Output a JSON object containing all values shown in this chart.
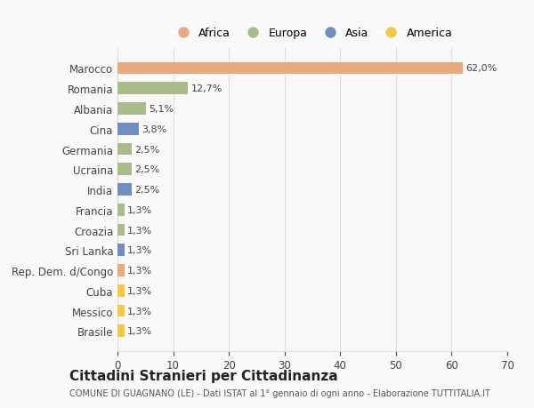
{
  "countries": [
    "Marocco",
    "Romania",
    "Albania",
    "Cina",
    "Germania",
    "Ucraina",
    "India",
    "Francia",
    "Croazia",
    "Sri Lanka",
    "Rep. Dem. d/Congo",
    "Cuba",
    "Messico",
    "Brasile"
  ],
  "values": [
    62.0,
    12.7,
    5.1,
    3.8,
    2.5,
    2.5,
    2.5,
    1.3,
    1.3,
    1.3,
    1.3,
    1.3,
    1.3,
    1.3
  ],
  "labels": [
    "62,0%",
    "12,7%",
    "5,1%",
    "3,8%",
    "2,5%",
    "2,5%",
    "2,5%",
    "1,3%",
    "1,3%",
    "1,3%",
    "1,3%",
    "1,3%",
    "1,3%",
    "1,3%"
  ],
  "colors": [
    "#E8A97E",
    "#A8BC8A",
    "#A8BC8A",
    "#6E8FBF",
    "#A8BC8A",
    "#A8BC8A",
    "#6E8FBF",
    "#A8BC8A",
    "#A8BC8A",
    "#6E8FBF",
    "#E8A97E",
    "#F5C842",
    "#F5C842",
    "#F5C842"
  ],
  "legend_labels": [
    "Africa",
    "Europa",
    "Asia",
    "America"
  ],
  "legend_colors": [
    "#E8A97E",
    "#A8BC8A",
    "#6E8FBF",
    "#F5C842"
  ],
  "xlim": [
    0,
    70
  ],
  "xticks": [
    0,
    10,
    20,
    30,
    40,
    50,
    60,
    70
  ],
  "title": "Cittadini Stranieri per Cittadinanza",
  "subtitle": "COMUNE DI GUAGNANO (LE) - Dati ISTAT al 1° gennaio di ogni anno - Elaborazione TUTTITALIA.IT",
  "bg_color": "#f9f9f9",
  "grid_color": "#dddddd"
}
